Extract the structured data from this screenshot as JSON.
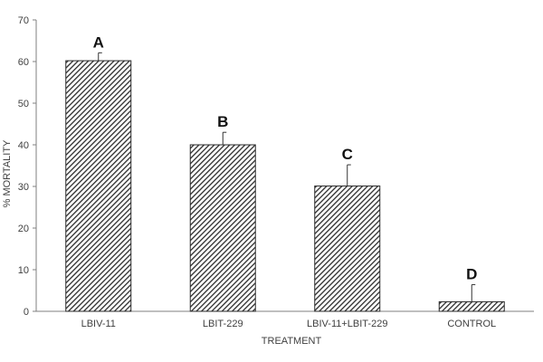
{
  "chart_data": {
    "type": "bar",
    "categories": [
      "LBIV-11",
      "LBIT-229",
      "LBIV-11+LBIT-229",
      "CONTROL"
    ],
    "values": [
      60.2,
      40.0,
      30.1,
      2.3
    ],
    "error_bars_upper": [
      1.9,
      3.0,
      5.1,
      4.1
    ],
    "significance_letters": [
      "A",
      "B",
      "C",
      "D"
    ],
    "xlabel": "TREATMENT",
    "ylabel": "% MORTALITY",
    "ylim": [
      0,
      70
    ],
    "yticks": [
      0,
      10,
      20,
      30,
      40,
      50,
      60,
      70
    ],
    "grid": false,
    "legend": "none",
    "bar_pattern": "diagonal-hatch",
    "colors": {
      "bar_stroke": "#2b2b2b",
      "hatch": "#2b2b2b",
      "bar_fill": "#ffffff",
      "axis": "#7f7f7f",
      "text": "#404040"
    }
  }
}
